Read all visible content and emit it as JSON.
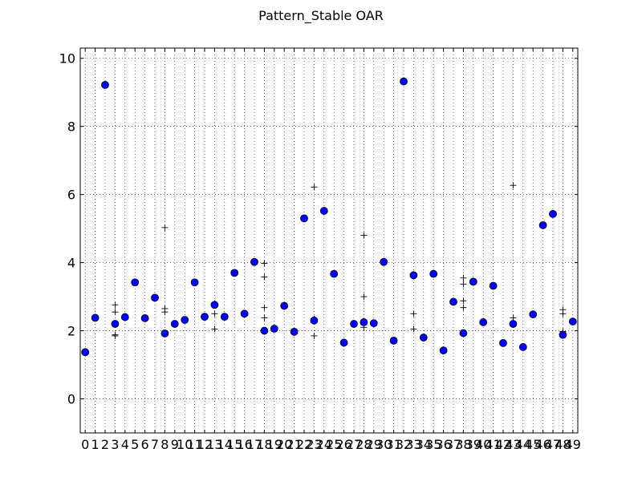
{
  "chart_data": {
    "type": "scatter",
    "title": "Pattern_Stable OAR",
    "xlabel": "",
    "ylabel": "",
    "xlim": [
      -0.5,
      49.5
    ],
    "ylim": [
      -1,
      10.3
    ],
    "x_ticks": [
      0,
      1,
      2,
      3,
      4,
      5,
      6,
      7,
      8,
      9,
      10,
      11,
      12,
      13,
      14,
      15,
      16,
      17,
      18,
      19,
      20,
      21,
      22,
      23,
      24,
      25,
      26,
      27,
      28,
      29,
      30,
      31,
      32,
      33,
      34,
      35,
      36,
      37,
      38,
      39,
      40,
      41,
      42,
      43,
      44,
      45,
      46,
      47,
      48,
      49
    ],
    "y_ticks": [
      0,
      2,
      4,
      6,
      8,
      10
    ],
    "grid": true,
    "colors": {
      "marker": "#0000ff",
      "plus": "#000000"
    },
    "series": [
      {
        "marker": "circle",
        "x": [
          0,
          1,
          2,
          3,
          4,
          5,
          6,
          7,
          8,
          9,
          10,
          11,
          12,
          13,
          14,
          15,
          16,
          17,
          18,
          19,
          20,
          21,
          22,
          23,
          24,
          25,
          26,
          27,
          28,
          29,
          30,
          31,
          32,
          33,
          34,
          35,
          36,
          37,
          38,
          39,
          40,
          41,
          42,
          43,
          44,
          45,
          46,
          47,
          48,
          49
        ],
        "values": [
          1.37,
          2.38,
          9.22,
          2.2,
          2.4,
          3.42,
          2.37,
          2.97,
          1.92,
          2.2,
          2.32,
          3.42,
          2.41,
          2.76,
          2.41,
          3.7,
          2.5,
          4.02,
          2.0,
          2.06,
          2.73,
          1.97,
          5.3,
          2.3,
          5.52,
          3.67,
          1.65,
          2.2,
          2.25,
          2.22,
          4.02,
          1.71,
          9.32,
          3.63,
          1.8,
          3.67,
          1.42,
          2.85,
          1.93,
          3.44,
          2.25,
          3.32,
          1.64,
          2.2,
          1.52,
          2.48,
          5.1,
          5.43,
          1.88,
          2.27
        ]
      },
      {
        "marker": "plus",
        "points": [
          [
            3,
            1.85
          ],
          [
            3,
            2.55
          ],
          [
            3,
            2.76
          ],
          [
            3,
            1.88
          ],
          [
            8,
            5.03
          ],
          [
            8,
            2.65
          ],
          [
            8,
            2.55
          ],
          [
            13,
            2.05
          ],
          [
            13,
            2.8
          ],
          [
            13,
            2.5
          ],
          [
            18,
            3.58
          ],
          [
            18,
            3.98
          ],
          [
            18,
            2.68
          ],
          [
            18,
            2.38
          ],
          [
            23,
            6.22
          ],
          [
            23,
            1.85
          ],
          [
            23,
            2.35
          ],
          [
            28,
            4.8
          ],
          [
            28,
            3.0
          ],
          [
            28,
            2.1
          ],
          [
            28,
            2.18
          ],
          [
            33,
            2.5
          ],
          [
            33,
            2.05
          ],
          [
            38,
            3.55
          ],
          [
            38,
            3.37
          ],
          [
            38,
            2.88
          ],
          [
            38,
            2.68
          ],
          [
            43,
            6.27
          ],
          [
            43,
            2.38
          ],
          [
            48,
            2.62
          ],
          [
            48,
            2.5
          ],
          [
            48,
            1.98
          ]
        ]
      }
    ]
  }
}
